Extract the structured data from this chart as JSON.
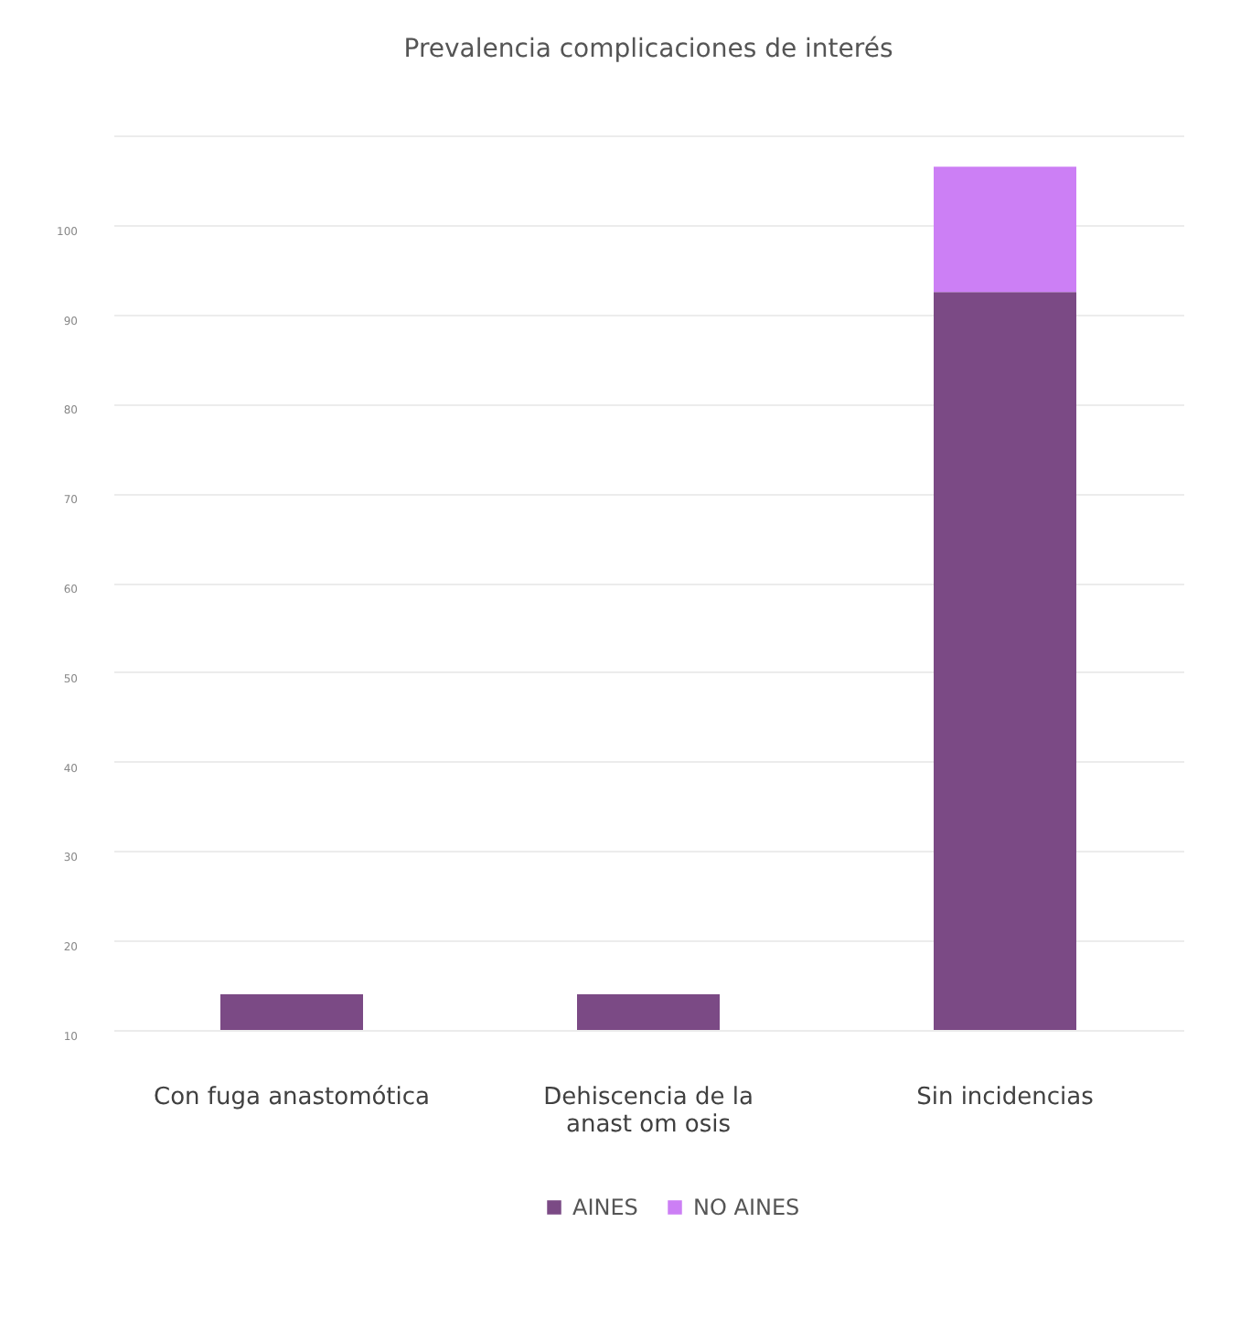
{
  "chart_data": {
    "type": "bar",
    "title": "Prevalencia complicaciones de interés",
    "categories": [
      "Con fuga anastomótica",
      "Dehiscencia de la anast om osis",
      "Sin incidencias"
    ],
    "stacked": true,
    "series": [
      {
        "name": "AINES",
        "color": "#7b4a85",
        "values": [
          14,
          14,
          92.5
        ]
      },
      {
        "name": "NO AINES",
        "color": "#cc7ff5",
        "values": [
          null,
          null,
          14
        ]
      }
    ],
    "ylim": [
      10,
      110
    ],
    "yticks": [
      10,
      20,
      30,
      40,
      50,
      60,
      70,
      80,
      90,
      100,
      {
        "value": 110,
        "label": null
      }
    ],
    "grid": "y",
    "legend": "bottom"
  }
}
